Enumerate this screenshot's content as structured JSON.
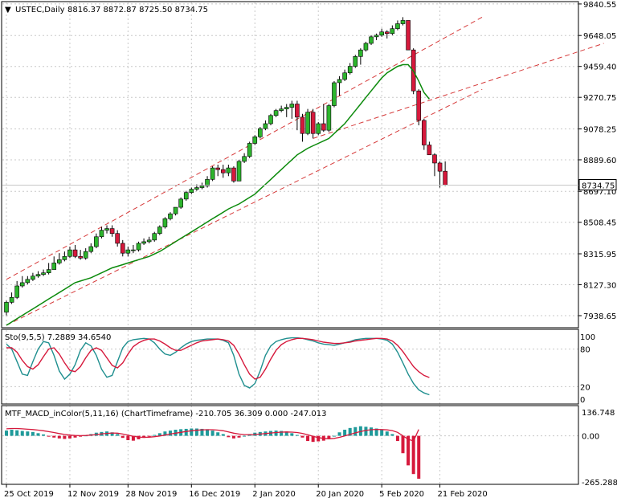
{
  "header": {
    "arrow": "▼",
    "symbol": "USTEC,Daily",
    "ohlc": "8816.37 8872.87 8725.50 8734.75"
  },
  "price_axis": {
    "ticks": [
      9840.55,
      9648.05,
      9459.4,
      9270.75,
      9078.25,
      8889.6,
      8697.1,
      8508.45,
      8315.95,
      8127.3,
      7938.65
    ],
    "tick_labels": [
      "9840.55",
      "9648.05",
      "9459.40",
      "9270.75",
      "9078.25",
      "8889.60",
      "8697.10",
      "8508.45",
      "8315.95",
      "8127.30",
      "7938.65"
    ],
    "range": [
      7870,
      9850
    ],
    "current_label": "8734.75"
  },
  "stoch": {
    "label": "Sto(9,5,5) 7.2889 34.6540",
    "ticks": [
      100,
      80,
      20,
      0
    ],
    "tick_labels": [
      "100",
      "80",
      "20",
      "0"
    ]
  },
  "macd": {
    "label": "MTF_MACD_inColor(5,11,16) (ChartTimeframe) -210.705 36.309 0.000 -247.013",
    "ticks": [
      136.748,
      0,
      -265.288
    ],
    "tick_labels": [
      "136.748",
      "0.00",
      "-265.288"
    ]
  },
  "time_axis": {
    "labels": [
      "25 Oct 2019",
      "12 Nov 2019",
      "28 Nov 2019",
      "16 Dec 2019",
      "2 Jan 2020",
      "20 Jan 2020",
      "5 Feb 2020",
      "21 Feb 2020"
    ],
    "label_bar_index": [
      0,
      12,
      23,
      35,
      47,
      59,
      71,
      82
    ]
  },
  "colors": {
    "bull": "#2db52d",
    "bear": "#d6193c",
    "ma": "#0b8a0b",
    "channel": "#d63a3a",
    "stoch_main": "#1f8f8f",
    "stoch_signal": "#d6193c",
    "macd_pos": "#1f9a9a",
    "macd_neg": "#d6193c",
    "grid": "#c8c8c8"
  },
  "chart_data": {
    "type": "candlestick",
    "panes": [
      "price",
      "stochastic",
      "macd"
    ],
    "candles": {
      "open": [
        7960,
        8020,
        8050,
        8120,
        8140,
        8160,
        8180,
        8190,
        8200,
        8220,
        8260,
        8280,
        8300,
        8340,
        8300,
        8290,
        8330,
        8360,
        8420,
        8460,
        8470,
        8440,
        8380,
        8320,
        8340,
        8340,
        8380,
        8390,
        8400,
        8440,
        8480,
        8530,
        8560,
        8600,
        8650,
        8690,
        8710,
        8720,
        8730,
        8770,
        8840,
        8830,
        8810,
        8840,
        8760,
        8880,
        8910,
        8990,
        9030,
        9080,
        9110,
        9160,
        9190,
        9200,
        9210,
        9230,
        9150,
        9050,
        9180,
        9050,
        9110,
        9070,
        9220,
        9360,
        9380,
        9420,
        9460,
        9520,
        9560,
        9600,
        9640,
        9650,
        9670,
        9660,
        9690,
        9720,
        9740,
        9560,
        9310,
        9130,
        8980,
        8920,
        8870,
        8820
      ],
      "high": [
        8030,
        8080,
        8150,
        8180,
        8180,
        8200,
        8210,
        8220,
        8260,
        8300,
        8320,
        8330,
        8360,
        8370,
        8340,
        8350,
        8380,
        8440,
        8480,
        8490,
        8490,
        8460,
        8400,
        8360,
        8370,
        8390,
        8410,
        8420,
        8450,
        8490,
        8540,
        8570,
        8600,
        8660,
        8700,
        8720,
        8740,
        8750,
        8790,
        8850,
        8860,
        8860,
        8860,
        8850,
        8890,
        8930,
        9000,
        9040,
        9090,
        9130,
        9170,
        9200,
        9220,
        9230,
        9250,
        9250,
        9170,
        9200,
        9200,
        9120,
        9230,
        9230,
        9370,
        9400,
        9440,
        9480,
        9530,
        9570,
        9610,
        9650,
        9660,
        9690,
        9680,
        9710,
        9740,
        9760,
        9740,
        9570,
        9320,
        9140,
        9000,
        8930,
        8880,
        8880
      ],
      "low": [
        7940,
        8010,
        8040,
        8110,
        8130,
        8150,
        8170,
        8180,
        8190,
        8220,
        8250,
        8270,
        8290,
        8290,
        8280,
        8280,
        8320,
        8350,
        8410,
        8440,
        8420,
        8360,
        8300,
        8300,
        8320,
        8330,
        8370,
        8380,
        8390,
        8430,
        8470,
        8520,
        8550,
        8590,
        8640,
        8680,
        8700,
        8710,
        8720,
        8760,
        8790,
        8780,
        8790,
        8750,
        8760,
        8870,
        8900,
        8980,
        9020,
        9070,
        9100,
        9150,
        9180,
        9150,
        9140,
        9070,
        9000,
        9040,
        9020,
        9040,
        9060,
        9060,
        9210,
        9280,
        9370,
        9410,
        9450,
        9470,
        9550,
        9590,
        9620,
        9640,
        9630,
        9650,
        9680,
        9710,
        9580,
        9290,
        9100,
        8950,
        8920,
        8790,
        8720,
        8730
      ],
      "close": [
        8020,
        8050,
        8120,
        8140,
        8160,
        8180,
        8190,
        8200,
        8220,
        8260,
        8280,
        8300,
        8340,
        8300,
        8290,
        8330,
        8360,
        8420,
        8460,
        8470,
        8440,
        8380,
        8320,
        8340,
        8340,
        8380,
        8390,
        8400,
        8440,
        8480,
        8530,
        8560,
        8600,
        8650,
        8690,
        8710,
        8720,
        8730,
        8770,
        8840,
        8830,
        8810,
        8840,
        8760,
        8880,
        8910,
        8990,
        9030,
        9080,
        9110,
        9160,
        9190,
        9200,
        9210,
        9230,
        9150,
        9050,
        9180,
        9050,
        9110,
        9070,
        9220,
        9360,
        9380,
        9420,
        9460,
        9520,
        9560,
        9600,
        9640,
        9650,
        9670,
        9660,
        9690,
        9720,
        9740,
        9560,
        9310,
        9130,
        8980,
        8920,
        8870,
        8820,
        8735
      ]
    },
    "moving_average": [
      7880,
      7900,
      7920,
      7940,
      7960,
      7980,
      8000,
      8020,
      8040,
      8060,
      8080,
      8100,
      8120,
      8140,
      8150,
      8160,
      8170,
      8185,
      8200,
      8215,
      8230,
      8240,
      8250,
      8260,
      8270,
      8280,
      8290,
      8300,
      8315,
      8330,
      8350,
      8370,
      8390,
      8410,
      8430,
      8450,
      8470,
      8490,
      8510,
      8530,
      8550,
      8570,
      8590,
      8605,
      8620,
      8640,
      8660,
      8680,
      8710,
      8740,
      8770,
      8800,
      8830,
      8860,
      8890,
      8920,
      8940,
      8960,
      8975,
      8990,
      9005,
      9020,
      9050,
      9080,
      9110,
      9150,
      9190,
      9230,
      9270,
      9310,
      9350,
      9390,
      9420,
      9440,
      9460,
      9470,
      9470,
      9430,
      9370,
      9300,
      9260
    ],
    "channel_lines": [
      {
        "name": "upper",
        "from": {
          "bar": 0,
          "price": 8160
        },
        "to": {
          "bar": 90,
          "price": 9760
        }
      },
      {
        "name": "lower",
        "from": {
          "bar": 0,
          "price": 7880
        },
        "to": {
          "bar": 90,
          "price": 9320
        }
      },
      {
        "name": "lower-ext",
        "from": {
          "bar": 58,
          "price": 9020
        },
        "to": {
          "bar": 113,
          "price": 9600
        }
      }
    ],
    "stochastic": {
      "main": [
        88,
        80,
        60,
        40,
        38,
        60,
        80,
        92,
        90,
        70,
        45,
        32,
        40,
        55,
        78,
        90,
        85,
        70,
        48,
        35,
        38,
        60,
        82,
        92,
        95,
        96,
        97,
        96,
        90,
        80,
        72,
        70,
        75,
        82,
        88,
        92,
        94,
        95,
        96,
        96,
        96,
        94,
        90,
        70,
        40,
        22,
        18,
        25,
        45,
        70,
        85,
        92,
        95,
        97,
        98,
        98,
        97,
        95,
        93,
        90,
        88,
        87,
        86,
        88,
        90,
        92,
        95,
        96,
        97,
        97,
        97,
        96,
        94,
        88,
        75,
        58,
        40,
        25,
        15,
        10,
        7
      ],
      "signal": [
        82,
        82,
        75,
        62,
        52,
        48,
        55,
        68,
        80,
        82,
        72,
        58,
        46,
        44,
        52,
        66,
        78,
        82,
        78,
        66,
        54,
        50,
        58,
        72,
        84,
        90,
        94,
        96,
        96,
        93,
        88,
        82,
        78,
        78,
        82,
        86,
        90,
        93,
        94,
        95,
        96,
        95,
        93,
        86,
        72,
        55,
        40,
        32,
        35,
        48,
        64,
        78,
        87,
        92,
        95,
        97,
        97,
        96,
        95,
        93,
        91,
        90,
        89,
        89,
        90,
        91,
        93,
        94,
        95,
        96,
        97,
        97,
        96,
        93,
        86,
        76,
        64,
        52,
        44,
        38,
        34.6
      ]
    },
    "macd": {
      "histogram": [
        30,
        35,
        32,
        28,
        25,
        22,
        15,
        8,
        -5,
        -10,
        -15,
        -18,
        -15,
        -10,
        -5,
        2,
        10,
        18,
        22,
        25,
        20,
        10,
        -12,
        -25,
        -28,
        -20,
        -12,
        -5,
        5,
        15,
        25,
        30,
        35,
        38,
        40,
        42,
        42,
        40,
        38,
        30,
        20,
        10,
        -8,
        -15,
        -10,
        0,
        10,
        18,
        22,
        25,
        28,
        30,
        28,
        25,
        15,
        5,
        -10,
        -30,
        -35,
        -32,
        -28,
        -15,
        0,
        20,
        35,
        45,
        50,
        55,
        52,
        48,
        42,
        35,
        25,
        10,
        -30,
        -100,
        -170,
        -220,
        -247
      ],
      "signal": [
        40,
        42,
        42,
        40,
        38,
        36,
        33,
        29,
        24,
        19,
        13,
        8,
        4,
        2,
        1,
        2,
        4,
        7,
        11,
        14,
        16,
        15,
        10,
        4,
        -3,
        -7,
        -9,
        -8,
        -5,
        -1,
        4,
        10,
        15,
        20,
        25,
        29,
        32,
        34,
        35,
        35,
        33,
        29,
        22,
        15,
        10,
        7,
        7,
        8,
        10,
        13,
        16,
        19,
        21,
        22,
        21,
        19,
        14,
        6,
        -3,
        -10,
        -15,
        -17,
        -15,
        -9,
        -1,
        8,
        17,
        25,
        31,
        35,
        37,
        36,
        34,
        30,
        20,
        0,
        -20,
        -30,
        36.3
      ]
    }
  }
}
